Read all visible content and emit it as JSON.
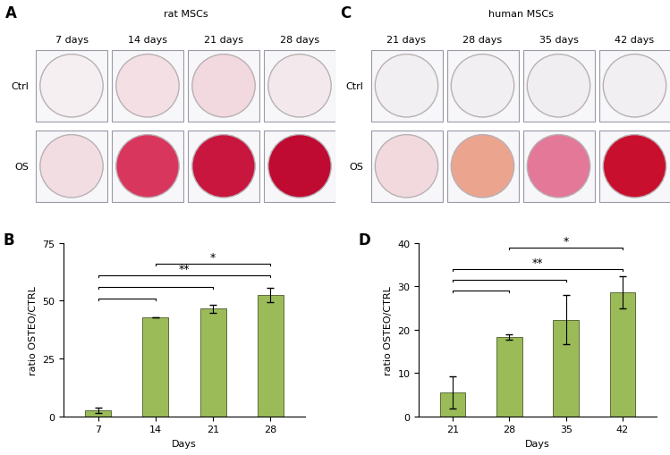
{
  "plates": [
    {
      "title": "A",
      "subtitle": "rat MSCs",
      "columns": [
        "7 days",
        "14 days",
        "21 days",
        "28 days"
      ],
      "rows": [
        {
          "name": "Ctrl",
          "colors": [
            "#f5eff1",
            "#f4dfe5",
            "#f2d8df",
            "#f3e9ec"
          ]
        },
        {
          "name": "OS",
          "colors": [
            "#f2dde3",
            "#d9365d",
            "#c8163f",
            "#bf0a31"
          ]
        }
      ]
    },
    {
      "title": "C",
      "subtitle": "human MSCs",
      "columns": [
        "21 days",
        "28 days",
        "35 days",
        "42 days"
      ],
      "rows": [
        {
          "name": "Ctrl",
          "colors": [
            "#f1eff1",
            "#f1eff1",
            "#f0eef0",
            "#f1eff1"
          ]
        },
        {
          "name": "OS",
          "colors": [
            "#f2d9dd",
            "#eba58f",
            "#e47898",
            "#c8102e"
          ]
        }
      ]
    }
  ],
  "chart_data": [
    {
      "type": "bar",
      "title": "B",
      "x_label": "Days",
      "y_label": "ratio OSTEO/CTRL",
      "categories": [
        "7",
        "14",
        "21",
        "28"
      ],
      "values": [
        2.5,
        43,
        46.5,
        52.5
      ],
      "errors": [
        1.2,
        0,
        1.8,
        3.0
      ],
      "color": "#9bbb59",
      "ylim": [
        0,
        75
      ],
      "yticks": [
        0,
        25,
        50,
        75
      ],
      "grid": false,
      "annotations": [
        {
          "from": "7",
          "to": "14",
          "y": 51
        },
        {
          "from": "7",
          "to": "21",
          "y": 56
        },
        {
          "from": "7",
          "to": "28",
          "y": 61,
          "text": "**"
        },
        {
          "from": "14",
          "to": "28",
          "y": 66,
          "text": "*"
        }
      ]
    },
    {
      "type": "bar",
      "title": "D",
      "x_label": "Days",
      "y_label": "ratio OSTEO/CTRL",
      "categories": [
        "21",
        "28",
        "35",
        "42"
      ],
      "values": [
        5.5,
        18.3,
        22.3,
        28.7
      ],
      "errors": [
        3.7,
        0.6,
        5.7,
        3.7
      ],
      "color": "#9bbb59",
      "ylim": [
        0,
        40
      ],
      "yticks": [
        0,
        10,
        20,
        30,
        40
      ],
      "grid": false,
      "annotations": [
        {
          "from": "21",
          "to": "28",
          "y": 29
        },
        {
          "from": "21",
          "to": "35",
          "y": 31.5
        },
        {
          "from": "21",
          "to": "42",
          "y": 34,
          "text": "**"
        },
        {
          "from": "28",
          "to": "42",
          "y": 39,
          "text": "*"
        }
      ]
    }
  ]
}
